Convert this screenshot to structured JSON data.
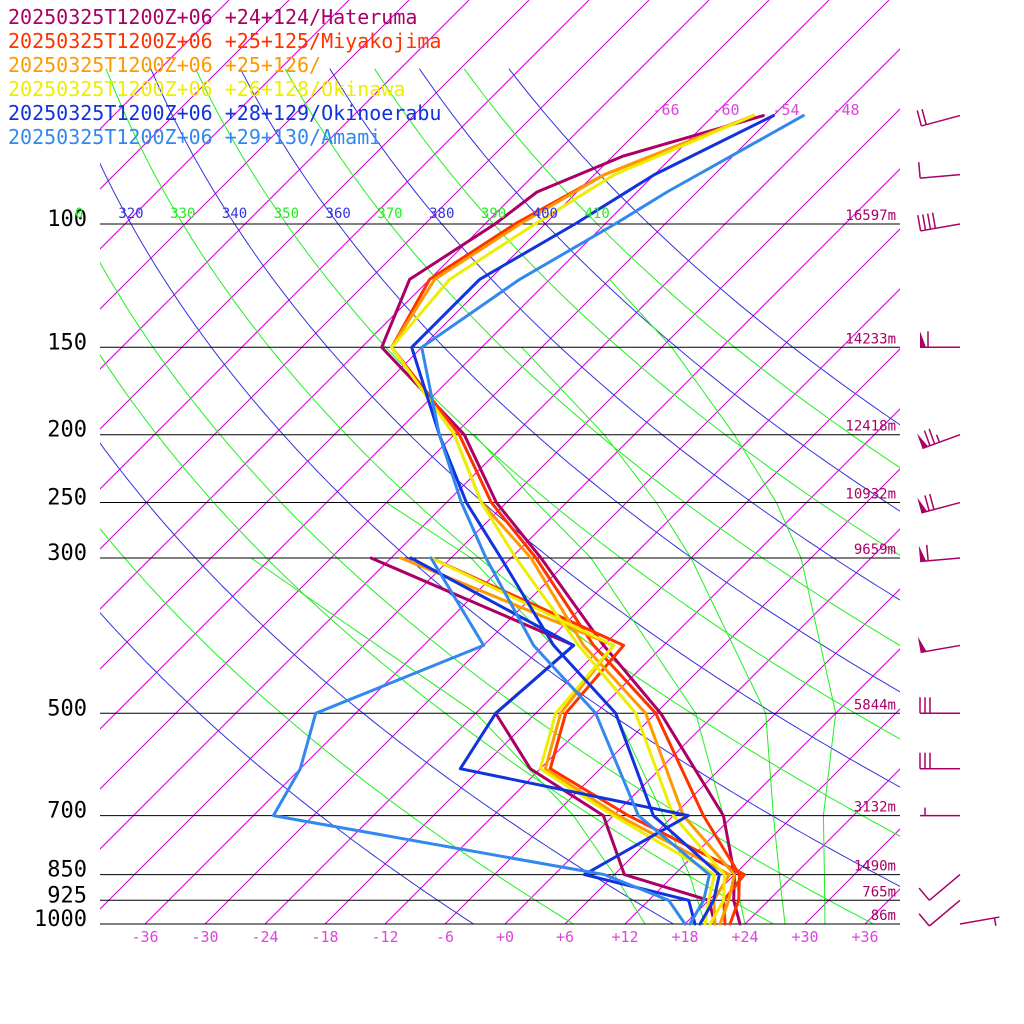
{
  "chart_data": {
    "type": "line",
    "title": "",
    "xlabel": "",
    "ylabel": "",
    "legend": "top-left",
    "grid": true,
    "pressure_levels": [
      100,
      150,
      200,
      250,
      300,
      500,
      700,
      850,
      925,
      1000
    ],
    "pressure_range": [
      70,
      1000
    ],
    "heights": [
      {
        "p": 100,
        "label": "16597m"
      },
      {
        "p": 150,
        "label": "14233m"
      },
      {
        "p": 200,
        "label": "12418m"
      },
      {
        "p": 250,
        "label": "10932m"
      },
      {
        "p": 300,
        "label": "9659m"
      },
      {
        "p": 500,
        "label": "5844m"
      },
      {
        "p": 700,
        "label": "3132m"
      },
      {
        "p": 850,
        "label": "1490m"
      },
      {
        "p": 925,
        "label": "765m"
      },
      {
        "p": 1000,
        "label": "86m"
      }
    ],
    "temperature_ticks": [
      -36,
      -30,
      -24,
      -18,
      -12,
      -6,
      0,
      6,
      12,
      18,
      24,
      30,
      36
    ],
    "temperature_tick_labels": [
      "-36",
      "-30",
      "-24",
      "-18",
      "-12",
      "-6",
      "+0",
      "+6",
      "+12",
      "+18",
      "+24",
      "+30",
      "+36"
    ],
    "temperature_range": [
      -40,
      40
    ],
    "skew_isotherm_labels": [
      "-66",
      "-60",
      "-54",
      "-48"
    ],
    "isotherm_start_temps": [
      -120,
      -114,
      -108,
      -102,
      -96,
      -90,
      -84,
      -78,
      -72,
      -66,
      -60,
      -54,
      -48,
      -42,
      -36,
      -30,
      -24,
      -18,
      -12,
      -6,
      0,
      6,
      12,
      18,
      24,
      30,
      36
    ],
    "theta_lines": [
      {
        "theta": 310,
        "label": "0",
        "color": "#22ee22"
      },
      {
        "theta": 320,
        "label": "320",
        "color": "#3333dd"
      },
      {
        "theta": 330,
        "label": "330",
        "color": "#22ee22"
      },
      {
        "theta": 340,
        "label": "340",
        "color": "#3333dd"
      },
      {
        "theta": 350,
        "label": "350",
        "color": "#22ee22"
      },
      {
        "theta": 360,
        "label": "360",
        "color": "#3333dd"
      },
      {
        "theta": 370,
        "label": "370",
        "color": "#22ee22"
      },
      {
        "theta": 380,
        "label": "380",
        "color": "#3333dd"
      },
      {
        "theta": 390,
        "label": "390",
        "color": "#22ee22"
      },
      {
        "theta": 400,
        "label": "400",
        "color": "#3333dd"
      },
      {
        "theta": 410,
        "label": "410",
        "color": "#22ee22"
      },
      {
        "theta": 420,
        "label": "",
        "color": "#3333dd"
      }
    ],
    "theta_extra": [
      {
        "theta": 290,
        "color": "#3333dd"
      },
      {
        "theta": 300,
        "color": "#22ee22"
      },
      {
        "theta": 280,
        "color": "#22ee22"
      },
      {
        "theta": 270,
        "color": "#3333dd"
      }
    ],
    "moist_adiabats": [
      {
        "t_at_1000": 14,
        "path": [
          [
            1000,
            14
          ],
          [
            850,
            6
          ],
          [
            700,
            -4
          ],
          [
            500,
            -24
          ],
          [
            300,
            -62
          ]
        ]
      },
      {
        "t_at_1000": 20,
        "path": [
          [
            1000,
            20
          ],
          [
            850,
            13.5
          ],
          [
            700,
            5
          ],
          [
            500,
            -10
          ],
          [
            300,
            -40
          ],
          [
            250,
            -54
          ]
        ]
      },
      {
        "t_at_1000": 24,
        "path": [
          [
            1000,
            24
          ],
          [
            850,
            18
          ],
          [
            700,
            11
          ],
          [
            500,
            -2
          ],
          [
            300,
            -28
          ],
          [
            250,
            -39
          ],
          [
            200,
            -52
          ]
        ]
      },
      {
        "t_at_1000": 28,
        "path": [
          [
            1000,
            28
          ],
          [
            850,
            22.5
          ],
          [
            700,
            16
          ],
          [
            500,
            5
          ],
          [
            300,
            -18
          ],
          [
            250,
            -27
          ],
          [
            200,
            -39
          ],
          [
            150,
            -56
          ]
        ]
      },
      {
        "t_at_1000": 32,
        "path": [
          [
            1000,
            32
          ],
          [
            850,
            27
          ],
          [
            700,
            21
          ],
          [
            500,
            12
          ],
          [
            300,
            -7
          ],
          [
            250,
            -15
          ],
          [
            200,
            -26
          ],
          [
            150,
            -41
          ],
          [
            120,
            -54
          ]
        ]
      }
    ],
    "series": [
      {
        "name": "20250325T1200Z+06 +24+124/Hateruma",
        "color": "#aa0066",
        "temperature": [
          [
            1000,
            23.5
          ],
          [
            925,
            20.5
          ],
          [
            850,
            18
          ],
          [
            700,
            11
          ],
          [
            500,
            -5.5
          ],
          [
            400,
            -18
          ],
          [
            300,
            -33
          ],
          [
            250,
            -43
          ],
          [
            200,
            -53
          ],
          [
            150,
            -70
          ],
          [
            120,
            -74
          ],
          [
            100,
            -71
          ],
          [
            90,
            -70
          ],
          [
            80,
            -65
          ],
          [
            70,
            -55
          ]
        ],
        "dewpoint": [
          [
            1000,
            21
          ],
          [
            925,
            18
          ],
          [
            850,
            7
          ],
          [
            700,
            -1
          ],
          [
            600,
            -13
          ],
          [
            500,
            -22
          ],
          [
            400,
            -21
          ],
          [
            300,
            -50
          ]
        ]
      },
      {
        "name": "20250325T1200Z+06 +25+125/Miyakojima",
        "color": "#ff3300",
        "temperature": [
          [
            1000,
            22.5
          ],
          [
            925,
            21
          ],
          [
            850,
            18.5
          ],
          [
            700,
            9
          ],
          [
            500,
            -6
          ],
          [
            400,
            -19
          ],
          [
            300,
            -33.5
          ],
          [
            250,
            -43.5
          ],
          [
            200,
            -53.5
          ],
          [
            150,
            -69
          ],
          [
            120,
            -72
          ],
          [
            100,
            -69
          ],
          [
            85,
            -65
          ],
          [
            70,
            -56
          ]
        ],
        "dewpoint": [
          [
            1000,
            22
          ],
          [
            925,
            19.5
          ],
          [
            850,
            19
          ],
          [
            700,
            1.5
          ],
          [
            600,
            -11
          ],
          [
            500,
            -15
          ],
          [
            400,
            -16
          ],
          [
            300,
            -44
          ]
        ]
      },
      {
        "name": "20250325T1200Z+06 +25+126/",
        "color": "#ff9900",
        "temperature": [
          [
            1000,
            21.5
          ],
          [
            925,
            20
          ],
          [
            850,
            18
          ],
          [
            700,
            7
          ],
          [
            500,
            -7
          ],
          [
            400,
            -20
          ],
          [
            300,
            -34
          ],
          [
            250,
            -44.5
          ],
          [
            200,
            -54
          ],
          [
            150,
            -69
          ],
          [
            120,
            -71.5
          ],
          [
            100,
            -68.5
          ],
          [
            85,
            -65
          ],
          [
            70,
            -56
          ]
        ],
        "dewpoint": [
          [
            1000,
            21
          ],
          [
            925,
            18.5
          ],
          [
            850,
            17.5
          ],
          [
            700,
            0.5
          ],
          [
            600,
            -11.5
          ],
          [
            500,
            -15.5
          ],
          [
            400,
            -17
          ],
          [
            300,
            -47
          ]
        ]
      },
      {
        "name": "20250325T1200Z+06 +26+128/Okinawa",
        "color": "#eeee00",
        "temperature": [
          [
            1000,
            20.5
          ],
          [
            925,
            19.5
          ],
          [
            850,
            17
          ],
          [
            700,
            6
          ],
          [
            500,
            -8
          ],
          [
            400,
            -20.5
          ],
          [
            300,
            -35.5
          ],
          [
            250,
            -44.5
          ],
          [
            200,
            -54
          ],
          [
            150,
            -69
          ],
          [
            120,
            -70
          ],
          [
            100,
            -67
          ],
          [
            85,
            -64
          ],
          [
            70,
            -56
          ]
        ],
        "dewpoint": [
          [
            1000,
            20
          ],
          [
            925,
            18
          ],
          [
            850,
            16
          ],
          [
            700,
            0
          ],
          [
            600,
            -12
          ],
          [
            500,
            -16
          ],
          [
            400,
            -17
          ],
          [
            300,
            -44
          ]
        ]
      },
      {
        "name": "20250325T1200Z+06 +28+129/Okinoerabu",
        "color": "#1133dd",
        "temperature": [
          [
            1000,
            19.5
          ],
          [
            925,
            18.5
          ],
          [
            850,
            16.5
          ],
          [
            700,
            4
          ],
          [
            500,
            -10
          ],
          [
            400,
            -23
          ],
          [
            300,
            -37
          ],
          [
            250,
            -46
          ],
          [
            200,
            -55.5
          ],
          [
            150,
            -67
          ],
          [
            120,
            -67
          ],
          [
            100,
            -63
          ],
          [
            85,
            -60
          ],
          [
            70,
            -54
          ]
        ],
        "dewpoint": [
          [
            1000,
            19
          ],
          [
            925,
            16
          ],
          [
            850,
            3
          ],
          [
            700,
            7.5
          ],
          [
            600,
            -20
          ],
          [
            500,
            -22
          ],
          [
            400,
            -21
          ],
          [
            300,
            -46
          ]
        ]
      },
      {
        "name": "20250325T1200Z+06 +29+130/Amami",
        "color": "#3388ee",
        "temperature": [
          [
            1000,
            18.5
          ],
          [
            925,
            17.5
          ],
          [
            850,
            15.5
          ],
          [
            700,
            2.5
          ],
          [
            500,
            -12
          ],
          [
            400,
            -25
          ],
          [
            300,
            -38.5
          ],
          [
            250,
            -46.5
          ],
          [
            200,
            -55.5
          ],
          [
            150,
            -66
          ],
          [
            120,
            -63
          ],
          [
            100,
            -59
          ],
          [
            90,
            -57
          ],
          [
            70,
            -51
          ]
        ],
        "dewpoint": [
          [
            1000,
            18
          ],
          [
            925,
            14
          ],
          [
            850,
            5
          ],
          [
            700,
            -34
          ],
          [
            600,
            -36
          ],
          [
            500,
            -40
          ],
          [
            400,
            -30
          ],
          [
            300,
            -44
          ]
        ]
      }
    ],
    "wind_barb_color": "#aa0066",
    "wind_barbs": [
      {
        "p": 1000,
        "speed_kt": 5,
        "dir_deg": 80
      },
      {
        "p": 925,
        "speed_kt": 10,
        "dir_deg": 230
      },
      {
        "p": 850,
        "speed_kt": 10,
        "dir_deg": 230
      },
      {
        "p": 700,
        "speed_kt": 5,
        "dir_deg": 270
      },
      {
        "p": 600,
        "speed_kt": 30,
        "dir_deg": 270
      },
      {
        "p": 500,
        "speed_kt": 30,
        "dir_deg": 270
      },
      {
        "p": 400,
        "speed_kt": 50,
        "dir_deg": 260
      },
      {
        "p": 300,
        "speed_kt": 60,
        "dir_deg": 265
      },
      {
        "p": 250,
        "speed_kt": 70,
        "dir_deg": 255
      },
      {
        "p": 200,
        "speed_kt": 75,
        "dir_deg": 250
      },
      {
        "p": 150,
        "speed_kt": 60,
        "dir_deg": 270
      },
      {
        "p": 100,
        "speed_kt": 40,
        "dir_deg": 260
      },
      {
        "p": 85,
        "speed_kt": 10,
        "dir_deg": 265
      },
      {
        "p": 70,
        "speed_kt": 20,
        "dir_deg": 255
      }
    ],
    "colors": {
      "isotherm": "#cc00cc",
      "theta_green": "#22ee22",
      "theta_blue": "#3333dd",
      "isobar": "#000000",
      "height_label": "#aa0066",
      "temp_tick": "#dd44dd"
    }
  }
}
